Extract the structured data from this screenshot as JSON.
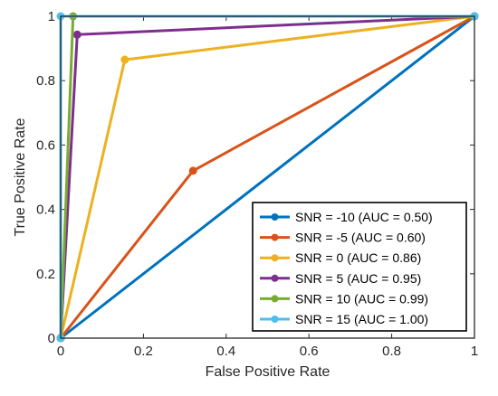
{
  "chart_data": {
    "type": "line",
    "title": "",
    "xlabel": "False Positive Rate",
    "ylabel": "True Positive Rate",
    "xlim": [
      0,
      1
    ],
    "ylim": [
      0,
      1
    ],
    "xticks": [
      {
        "value": 0,
        "label": "0"
      },
      {
        "value": 0.2,
        "label": "0.2"
      },
      {
        "value": 0.4,
        "label": "0.4"
      },
      {
        "value": 0.6,
        "label": "0.6"
      },
      {
        "value": 0.8,
        "label": "0.8"
      },
      {
        "value": 1,
        "label": "1"
      }
    ],
    "yticks": [
      {
        "value": 0,
        "label": "0"
      },
      {
        "value": 0.2,
        "label": "0.2"
      },
      {
        "value": 0.4,
        "label": "0.4"
      },
      {
        "value": 0.6,
        "label": "0.6"
      },
      {
        "value": 0.8,
        "label": "0.8"
      },
      {
        "value": 1,
        "label": "1"
      }
    ],
    "grid": false,
    "legend_position": "bottom-right",
    "series": [
      {
        "name": "SNR = -10 (AUC = 0.50)",
        "color": "#0072BD",
        "x": [
          0,
          1
        ],
        "y": [
          0,
          1
        ]
      },
      {
        "name": "SNR = -5 (AUC = 0.60)",
        "color": "#D95319",
        "x": [
          0,
          0.32,
          1
        ],
        "y": [
          0,
          0.52,
          1
        ]
      },
      {
        "name": "SNR = 0 (AUC = 0.86)",
        "color": "#EDB120",
        "x": [
          0,
          0.155,
          1
        ],
        "y": [
          0,
          0.865,
          1
        ]
      },
      {
        "name": "SNR = 5 (AUC = 0.95)",
        "color": "#7E2F8E",
        "x": [
          0,
          0.04,
          1
        ],
        "y": [
          0,
          0.943,
          1
        ]
      },
      {
        "name": "SNR = 10 (AUC = 0.99)",
        "color": "#77AC30",
        "x": [
          0,
          0.03,
          1
        ],
        "y": [
          0,
          1,
          1
        ]
      },
      {
        "name": "SNR = 15 (AUC = 1.00)",
        "color": "#4DBEEE",
        "x": [
          0,
          0,
          1
        ],
        "y": [
          0,
          1,
          1
        ]
      }
    ]
  }
}
